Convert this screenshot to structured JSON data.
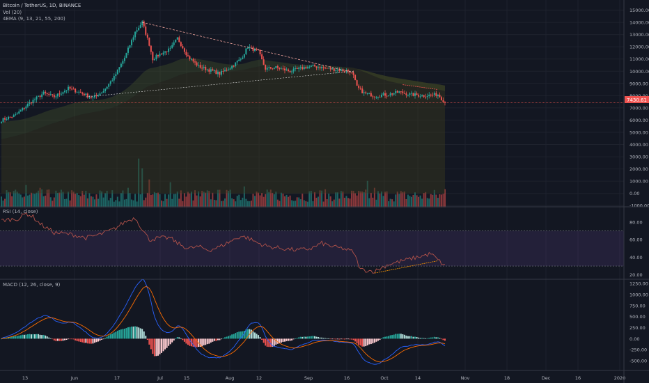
{
  "header": {
    "symbol": "Bitcoin / TetherUS, 1D, BINANCE",
    "vol_legend": "Vol (20)",
    "ema_legend": "4EMA (9, 13, 21, 55, 200)",
    "rsi_legend": "RSI (14, close)",
    "macd_legend": "MACD (12, 26, close, 9)"
  },
  "colors": {
    "background": "#131722",
    "up": "#26a69a",
    "down": "#ef5350",
    "rsi_band": "#7e57c2",
    "macd_line": "#2962ff",
    "signal_line": "#ff6d00",
    "price_tag": "#ef5350"
  },
  "chart_data": [
    {
      "type": "candlestick",
      "name": "price",
      "y_ticks": [
        "15000.00",
        "14000.00",
        "13000.00",
        "12000.00",
        "11000.00",
        "10000.00",
        "9000.00",
        "8000.00",
        "7000.00",
        "6000.00",
        "5000.00",
        "4000.00",
        "3000.00",
        "2000.00",
        "1000.00",
        "0.00",
        "-1000.00"
      ],
      "y_range": [
        -1100,
        15600
      ],
      "last_price_label": "7430.61",
      "last_price": 7430.61,
      "keypoints": [
        [
          0,
          6000
        ],
        [
          8,
          6400
        ],
        [
          16,
          7400
        ],
        [
          24,
          8200
        ],
        [
          30,
          7900
        ],
        [
          38,
          8600
        ],
        [
          44,
          8300
        ],
        [
          52,
          7800
        ],
        [
          58,
          8400
        ],
        [
          64,
          9500
        ],
        [
          70,
          11100
        ],
        [
          76,
          13200
        ],
        [
          80,
          14000
        ],
        [
          84,
          12200
        ],
        [
          86,
          11000
        ],
        [
          90,
          11400
        ],
        [
          96,
          11800
        ],
        [
          100,
          12700
        ],
        [
          106,
          11200
        ],
        [
          112,
          10400
        ],
        [
          118,
          10100
        ],
        [
          124,
          9800
        ],
        [
          130,
          10300
        ],
        [
          136,
          11000
        ],
        [
          140,
          12000
        ],
        [
          146,
          11600
        ],
        [
          150,
          10200
        ],
        [
          156,
          10300
        ],
        [
          164,
          10000
        ],
        [
          172,
          10300
        ],
        [
          178,
          10400
        ],
        [
          186,
          10200
        ],
        [
          192,
          10100
        ],
        [
          198,
          10000
        ],
        [
          200,
          9600
        ],
        [
          202,
          8700
        ],
        [
          206,
          8200
        ],
        [
          212,
          8000
        ],
        [
          220,
          8100
        ],
        [
          226,
          8300
        ],
        [
          232,
          8100
        ],
        [
          240,
          8000
        ],
        [
          248,
          8100
        ],
        [
          252,
          7430
        ]
      ]
    },
    {
      "type": "bar",
      "name": "volume",
      "y_range": [
        -1100,
        15600
      ]
    },
    {
      "type": "line",
      "name": "RSI",
      "y_ticks": [
        "80.00",
        "60.00",
        "40.00",
        "20.00"
      ],
      "y_range": [
        15,
        95
      ],
      "band": [
        30,
        70
      ],
      "keypoints": [
        [
          0,
          82
        ],
        [
          10,
          84
        ],
        [
          14,
          90
        ],
        [
          18,
          86
        ],
        [
          22,
          78
        ],
        [
          30,
          68
        ],
        [
          40,
          66
        ],
        [
          48,
          62
        ],
        [
          56,
          66
        ],
        [
          64,
          72
        ],
        [
          70,
          80
        ],
        [
          76,
          85
        ],
        [
          80,
          72
        ],
        [
          84,
          60
        ],
        [
          90,
          62
        ],
        [
          96,
          62
        ],
        [
          100,
          56
        ],
        [
          106,
          50
        ],
        [
          112,
          52
        ],
        [
          118,
          48
        ],
        [
          124,
          52
        ],
        [
          130,
          58
        ],
        [
          136,
          64
        ],
        [
          140,
          62
        ],
        [
          146,
          56
        ],
        [
          152,
          52
        ],
        [
          160,
          50
        ],
        [
          168,
          48
        ],
        [
          176,
          50
        ],
        [
          182,
          56
        ],
        [
          188,
          52
        ],
        [
          194,
          50
        ],
        [
          200,
          46
        ],
        [
          204,
          26
        ],
        [
          212,
          24
        ],
        [
          220,
          32
        ],
        [
          228,
          36
        ],
        [
          236,
          40
        ],
        [
          244,
          44
        ],
        [
          252,
          30
        ]
      ]
    },
    {
      "type": "line",
      "name": "MACD",
      "y_ticks": [
        "1250.00",
        "1000.00",
        "750.00",
        "500.00",
        "250.00",
        "0.00",
        "-250.00",
        "-500.00"
      ],
      "y_range": [
        -720,
        1330
      ]
    }
  ],
  "x_axis": {
    "ticks": [
      "13",
      "Jun",
      "17",
      "Jul",
      "15",
      "Aug",
      "12",
      "Sep",
      "16",
      "Oct",
      "14",
      "Nov",
      "18",
      "Dec",
      "16",
      "2020"
    ]
  }
}
